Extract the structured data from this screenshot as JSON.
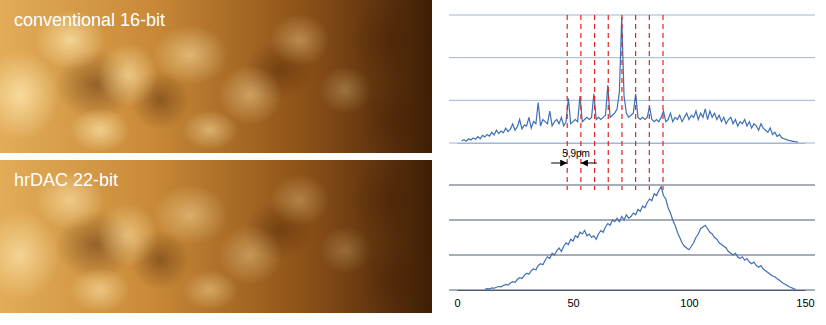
{
  "images": [
    {
      "label": "conventional 16-bit"
    },
    {
      "label": "hrDAC 22-bit"
    }
  ],
  "chart_data": [
    {
      "type": "line",
      "color": "#3f6fb4",
      "grid": true,
      "tick_labels": false,
      "xlim": [
        0,
        150
      ],
      "ylim": [
        0,
        3
      ],
      "yticks": [
        0,
        1,
        2,
        3
      ],
      "vlines": [
        47.5,
        53.4,
        59.3,
        65.2,
        71.1,
        77,
        82.9,
        88.8
      ],
      "annotations": [
        {
          "text": "5,9pm",
          "x": [
            47.5,
            53.4
          ]
        }
      ],
      "x": [
        2,
        3,
        4,
        5,
        6,
        7,
        8,
        9,
        10,
        11,
        12,
        13,
        14,
        15,
        16,
        17,
        18,
        19,
        20,
        21,
        22,
        23,
        24,
        25,
        26,
        27,
        28,
        29,
        30,
        31,
        32,
        33,
        34,
        35,
        36,
        37,
        38,
        39,
        40,
        41,
        42,
        43,
        44,
        45,
        46,
        47,
        48,
        49,
        50,
        51,
        52,
        53,
        54,
        55,
        56,
        57,
        58,
        59,
        60,
        61,
        62,
        63,
        64,
        65,
        66,
        67,
        68,
        69,
        70,
        71,
        72,
        73,
        74,
        75,
        76,
        77,
        78,
        79,
        80,
        81,
        82,
        83,
        84,
        85,
        86,
        87,
        88,
        89,
        90,
        91,
        92,
        93,
        94,
        95,
        96,
        97,
        98,
        99,
        100,
        101,
        102,
        103,
        104,
        105,
        106,
        107,
        108,
        109,
        110,
        111,
        112,
        113,
        114,
        115,
        116,
        117,
        118,
        119,
        120,
        121,
        122,
        123,
        124,
        125,
        126,
        127,
        128,
        129,
        130,
        131,
        132,
        133,
        134,
        135,
        136,
        137,
        138,
        139,
        140,
        141,
        142,
        143,
        144,
        145,
        146,
        147
      ],
      "values": [
        0.05,
        0.08,
        0.04,
        0.1,
        0.07,
        0.12,
        0.09,
        0.15,
        0.1,
        0.18,
        0.14,
        0.2,
        0.16,
        0.25,
        0.19,
        0.3,
        0.22,
        0.28,
        0.24,
        0.35,
        0.27,
        0.32,
        0.45,
        0.3,
        0.38,
        0.55,
        0.33,
        0.42,
        0.4,
        0.6,
        0.35,
        0.5,
        0.45,
        0.95,
        0.4,
        0.55,
        0.5,
        0.45,
        0.75,
        0.4,
        0.5,
        0.55,
        0.45,
        0.6,
        0.4,
        0.5,
        1.05,
        0.45,
        0.5,
        0.55,
        0.5,
        1.1,
        0.5,
        0.55,
        0.6,
        0.55,
        0.6,
        1.15,
        0.55,
        0.6,
        0.55,
        0.6,
        0.65,
        1.35,
        0.6,
        0.65,
        0.7,
        0.8,
        1.2,
        2.95,
        1.1,
        0.7,
        0.6,
        0.65,
        0.7,
        1.15,
        0.6,
        0.55,
        0.6,
        0.55,
        0.6,
        0.85,
        0.55,
        0.5,
        0.55,
        0.5,
        0.6,
        0.75,
        0.5,
        0.55,
        0.7,
        0.5,
        0.6,
        0.55,
        0.65,
        0.5,
        0.6,
        0.7,
        0.55,
        0.65,
        0.6,
        0.75,
        0.55,
        0.7,
        0.6,
        0.8,
        0.55,
        0.75,
        0.6,
        0.7,
        0.55,
        0.65,
        0.5,
        0.6,
        0.45,
        0.55,
        0.6,
        0.45,
        0.55,
        0.4,
        0.5,
        0.45,
        0.55,
        0.4,
        0.5,
        0.35,
        0.45,
        0.4,
        0.3,
        0.45,
        0.35,
        0.3,
        0.25,
        0.35,
        0.2,
        0.25,
        0.15,
        0.2,
        0.12,
        0.1,
        0.08,
        0.06,
        0.05,
        0.04,
        0.03,
        0.02
      ]
    },
    {
      "type": "line",
      "color": "#3f6fb4",
      "grid": true,
      "tick_labels": "x",
      "xlim": [
        0,
        150
      ],
      "xticks": [
        0,
        50,
        100,
        150
      ],
      "ylim": [
        0,
        3
      ],
      "yticks": [
        0,
        1,
        2,
        3
      ],
      "x": [
        12,
        13,
        14,
        15,
        16,
        17,
        18,
        19,
        20,
        21,
        22,
        23,
        24,
        25,
        26,
        27,
        28,
        29,
        30,
        31,
        32,
        33,
        34,
        35,
        36,
        37,
        38,
        39,
        40,
        41,
        42,
        43,
        44,
        45,
        46,
        47,
        48,
        49,
        50,
        51,
        52,
        53,
        54,
        55,
        56,
        57,
        58,
        59,
        60,
        61,
        62,
        63,
        64,
        65,
        66,
        67,
        68,
        69,
        70,
        71,
        72,
        73,
        74,
        75,
        76,
        77,
        78,
        79,
        80,
        81,
        82,
        83,
        84,
        85,
        86,
        87,
        88,
        89,
        90,
        91,
        92,
        93,
        94,
        95,
        96,
        97,
        98,
        99,
        100,
        101,
        102,
        103,
        104,
        105,
        106,
        107,
        108,
        109,
        110,
        111,
        112,
        113,
        114,
        115,
        116,
        117,
        118,
        119,
        120,
        121,
        122,
        123,
        124,
        125,
        126,
        127,
        128,
        129,
        130,
        131,
        132,
        133,
        134,
        135,
        136,
        137,
        138,
        139,
        140,
        141,
        142,
        143,
        144,
        145,
        146
      ],
      "values": [
        0.02,
        0.04,
        0.03,
        0.06,
        0.05,
        0.08,
        0.1,
        0.09,
        0.13,
        0.16,
        0.14,
        0.2,
        0.24,
        0.22,
        0.3,
        0.35,
        0.33,
        0.42,
        0.48,
        0.45,
        0.55,
        0.6,
        0.58,
        0.7,
        0.75,
        0.72,
        0.85,
        0.95,
        0.9,
        1.05,
        1.0,
        1.12,
        1.2,
        1.1,
        1.25,
        1.35,
        1.3,
        1.45,
        1.4,
        1.55,
        1.5,
        1.65,
        1.6,
        1.7,
        1.55,
        1.6,
        1.5,
        1.55,
        1.45,
        1.6,
        1.7,
        1.65,
        1.8,
        1.9,
        1.85,
        2.0,
        1.95,
        2.05,
        1.95,
        2.1,
        2.0,
        2.15,
        2.05,
        2.1,
        2.2,
        2.15,
        2.3,
        2.25,
        2.4,
        2.35,
        2.5,
        2.6,
        2.55,
        2.75,
        2.7,
        2.85,
        2.95,
        2.7,
        2.6,
        2.35,
        2.2,
        2.0,
        1.85,
        1.65,
        1.5,
        1.35,
        1.25,
        1.2,
        1.15,
        1.25,
        1.35,
        1.5,
        1.6,
        1.75,
        1.8,
        1.85,
        1.75,
        1.65,
        1.6,
        1.5,
        1.45,
        1.35,
        1.3,
        1.25,
        1.2,
        1.1,
        1.05,
        1.0,
        1.05,
        0.95,
        0.9,
        0.95,
        0.85,
        0.9,
        0.8,
        0.75,
        0.8,
        0.7,
        0.65,
        0.7,
        0.6,
        0.55,
        0.5,
        0.45,
        0.4,
        0.38,
        0.32,
        0.28,
        0.22,
        0.18,
        0.14,
        0.1,
        0.07,
        0.04,
        0.02
      ]
    }
  ]
}
